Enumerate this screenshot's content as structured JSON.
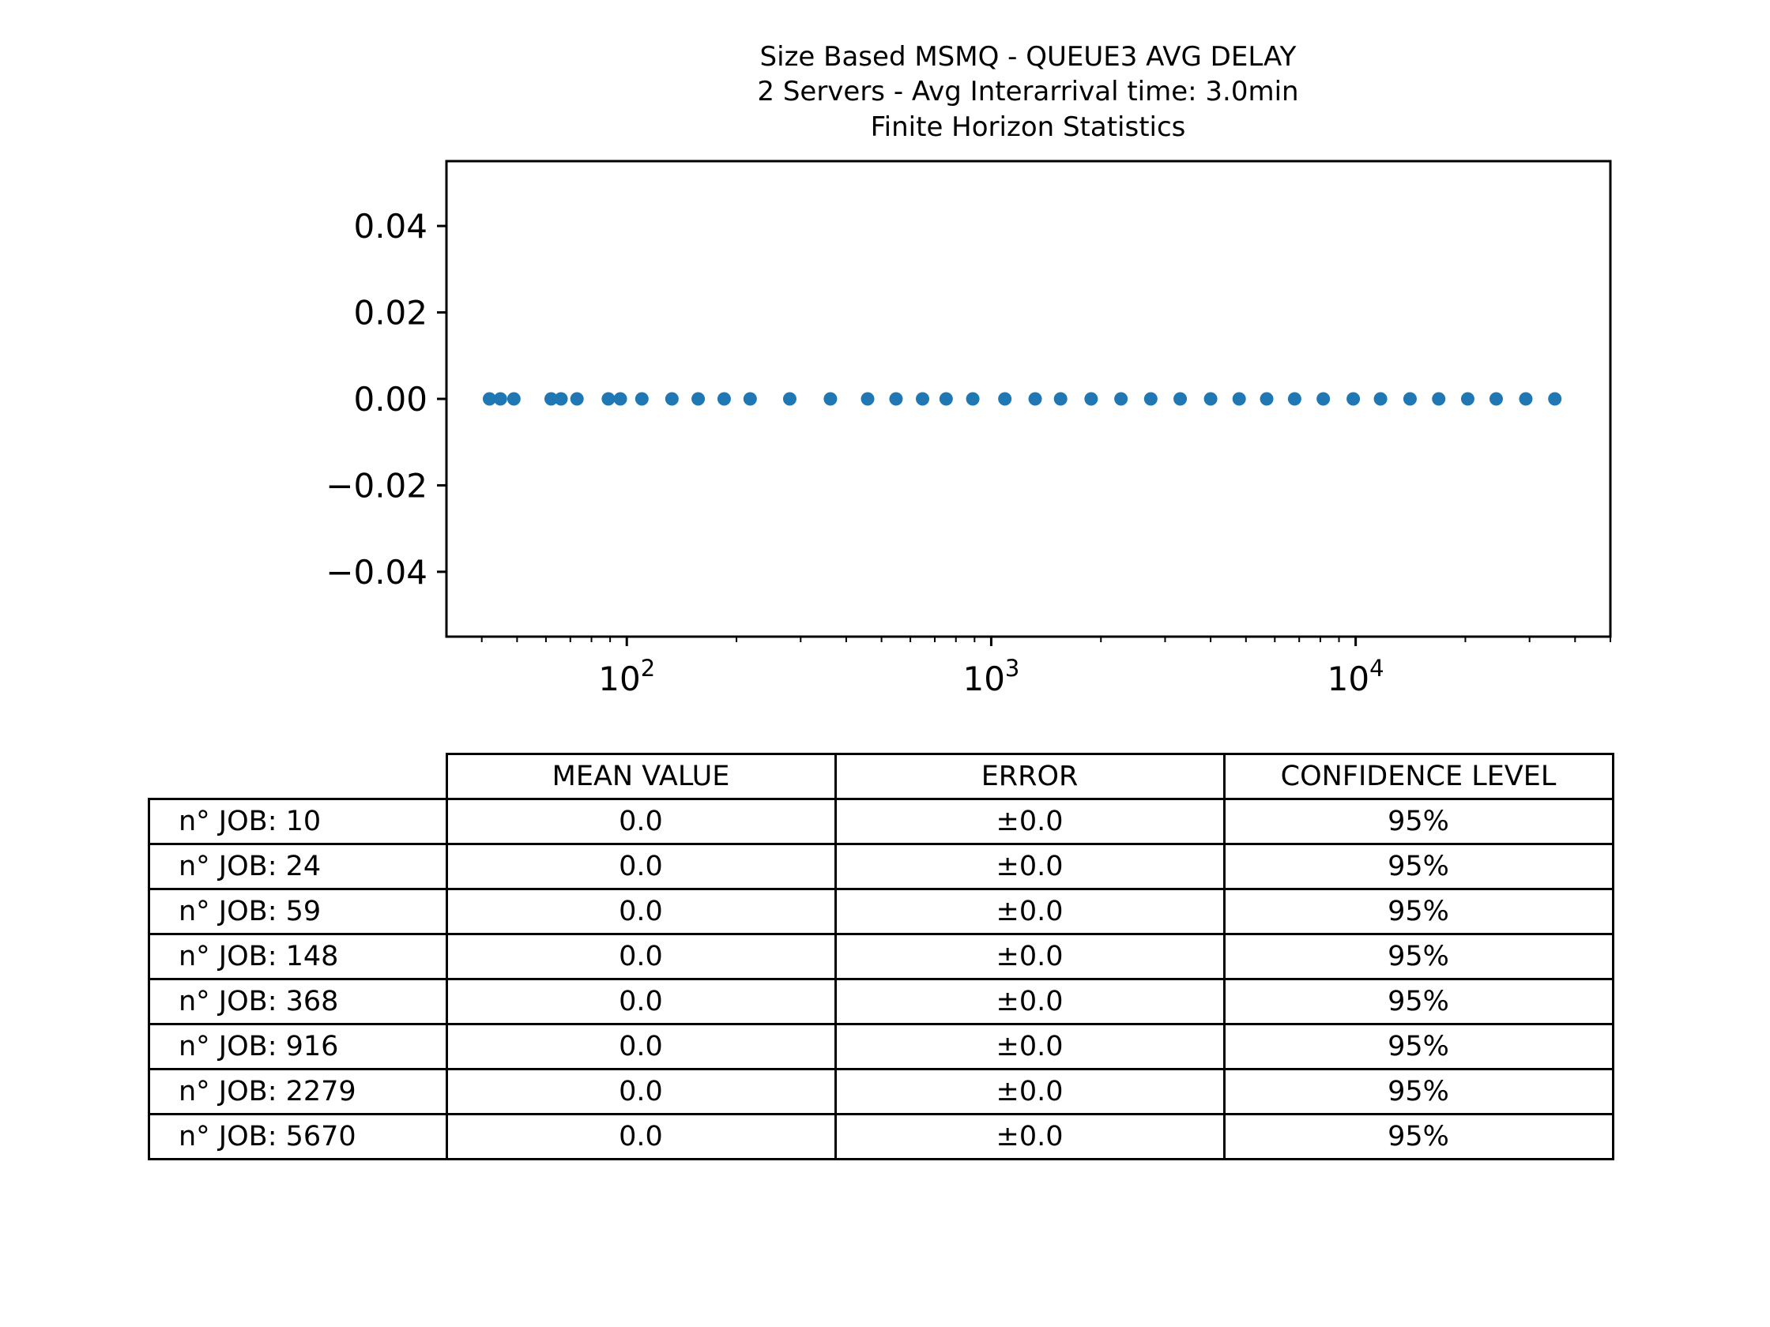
{
  "chart_data": {
    "type": "scatter",
    "title": [
      "Size Based MSMQ - QUEUE3 AVG DELAY",
      "2 Servers -  Avg Interarrival time: 3.0min",
      "Finite Horizon Statistics"
    ],
    "xlabel": "",
    "ylabel": "",
    "xscale": "log",
    "xlim": [
      32,
      50000
    ],
    "ylim": [
      -0.055,
      0.055
    ],
    "xticks": [
      {
        "value": 100,
        "base": "10",
        "exp": "2"
      },
      {
        "value": 1000,
        "base": "10",
        "exp": "3"
      },
      {
        "value": 10000,
        "base": "10",
        "exp": "4"
      }
    ],
    "yticks": [
      {
        "value": 0.04,
        "label": "0.04"
      },
      {
        "value": 0.02,
        "label": "0.02"
      },
      {
        "value": 0.0,
        "label": "0.00"
      },
      {
        "value": -0.02,
        "label": "−0.02"
      },
      {
        "value": -0.04,
        "label": "−0.04"
      }
    ],
    "grid": false,
    "color": "#1f77b4",
    "points": [
      [
        42,
        0
      ],
      [
        45,
        0
      ],
      [
        49,
        0
      ],
      [
        62,
        0
      ],
      [
        66,
        0
      ],
      [
        73,
        0
      ],
      [
        89,
        0
      ],
      [
        96,
        0
      ],
      [
        110,
        0
      ],
      [
        133,
        0
      ],
      [
        157,
        0
      ],
      [
        185,
        0
      ],
      [
        218,
        0
      ],
      [
        280,
        0
      ],
      [
        362,
        0
      ],
      [
        458,
        0
      ],
      [
        548,
        0
      ],
      [
        648,
        0
      ],
      [
        752,
        0
      ],
      [
        890,
        0
      ],
      [
        1090,
        0
      ],
      [
        1320,
        0
      ],
      [
        1550,
        0
      ],
      [
        1880,
        0
      ],
      [
        2270,
        0
      ],
      [
        2740,
        0
      ],
      [
        3300,
        0
      ],
      [
        4000,
        0
      ],
      [
        4790,
        0
      ],
      [
        5700,
        0
      ],
      [
        6800,
        0
      ],
      [
        8150,
        0
      ],
      [
        9850,
        0
      ],
      [
        11700,
        0
      ],
      [
        14100,
        0
      ],
      [
        16900,
        0
      ],
      [
        20300,
        0
      ],
      [
        24300,
        0
      ],
      [
        29300,
        0
      ],
      [
        35200,
        0
      ]
    ]
  },
  "table": {
    "headers": [
      "MEAN VALUE",
      "ERROR",
      "CONFIDENCE LEVEL"
    ],
    "rows": [
      {
        "label": "n° JOB: 10",
        "mean": "0.0",
        "error": "±0.0",
        "confidence": "95%"
      },
      {
        "label": "n° JOB: 24",
        "mean": "0.0",
        "error": "±0.0",
        "confidence": "95%"
      },
      {
        "label": "n° JOB: 59",
        "mean": "0.0",
        "error": "±0.0",
        "confidence": "95%"
      },
      {
        "label": "n° JOB: 148",
        "mean": "0.0",
        "error": "±0.0",
        "confidence": "95%"
      },
      {
        "label": "n° JOB: 368",
        "mean": "0.0",
        "error": "±0.0",
        "confidence": "95%"
      },
      {
        "label": "n° JOB: 916",
        "mean": "0.0",
        "error": "±0.0",
        "confidence": "95%"
      },
      {
        "label": "n° JOB: 2279",
        "mean": "0.0",
        "error": "±0.0",
        "confidence": "95%"
      },
      {
        "label": "n° JOB: 5670",
        "mean": "0.0",
        "error": "±0.0",
        "confidence": "95%"
      }
    ]
  }
}
